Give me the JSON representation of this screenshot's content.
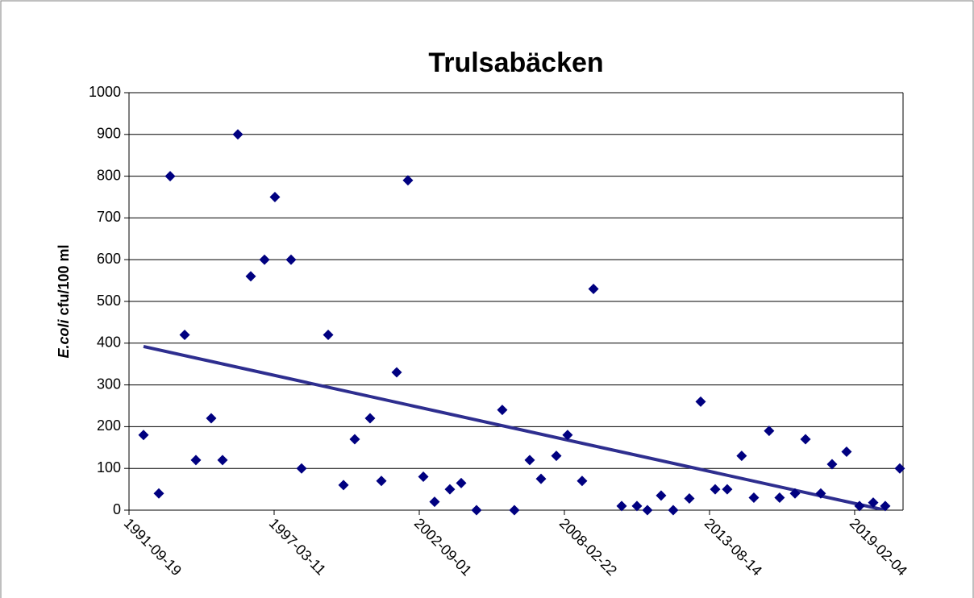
{
  "chart_data": {
    "type": "scatter",
    "title": "Trulsabäcken",
    "ylabel": {
      "italic": "E.coli",
      "rest": " cfu/100 ml"
    },
    "color": "#000080",
    "x": [
      "1992-04-06",
      "1992-11-03",
      "1993-04-08",
      "1993-10-25",
      "1994-03-29",
      "1994-10-26",
      "1995-03-31",
      "1995-10-28",
      "1996-04-23",
      "1996-10-29",
      "1997-03-22",
      "1997-10-30",
      "1998-03-24",
      "1999-03-26",
      "1999-10-23",
      "2000-03-26",
      "2000-10-23",
      "2001-03-28",
      "2001-10-25",
      "2002-03-29",
      "2002-10-27",
      "2003-03-31",
      "2003-10-28",
      "2004-04-01",
      "2004-10-29",
      "2005-10-19",
      "2006-04-04",
      "2006-11-01",
      "2007-04-06",
      "2007-11-03",
      "2008-04-06",
      "2008-10-23",
      "2009-03-29",
      "2010-04-21",
      "2010-11-18",
      "2011-04-11",
      "2011-10-17",
      "2012-04-01",
      "2012-11-09",
      "2013-04-14",
      "2013-10-31",
      "2014-04-15",
      "2014-10-31",
      "2015-04-17",
      "2015-11-13",
      "2016-04-06",
      "2016-11-04",
      "2017-03-29",
      "2017-10-25",
      "2018-03-30",
      "2018-10-16",
      "2019-04-12",
      "2019-10-18",
      "2020-04-01",
      "2020-10-18"
    ],
    "values": [
      180,
      40,
      800,
      420,
      120,
      220,
      120,
      900,
      560,
      600,
      750,
      600,
      100,
      420,
      60,
      170,
      220,
      70,
      330,
      790,
      80,
      20,
      50,
      65,
      0,
      240,
      0,
      120,
      75,
      130,
      180,
      70,
      530,
      10,
      10,
      0,
      35,
      0,
      28,
      260,
      50,
      50,
      130,
      30,
      190,
      30,
      40,
      170,
      40,
      110,
      140,
      10,
      18,
      10,
      100
    ],
    "trendline": {
      "x": [
        "1992-04-06",
        "2020-04-01"
      ],
      "values": [
        392,
        0
      ],
      "color": "#2e2e8f"
    },
    "xlim": [
      "1991-09-19",
      "2020-12-02"
    ],
    "xticks": [
      "1991-09-19",
      "1997-03-11",
      "2002-09-01",
      "2008-02-22",
      "2013-08-14",
      "2019-02-04"
    ],
    "ylim": [
      0,
      1000
    ],
    "yticks": [
      0,
      100,
      200,
      300,
      400,
      500,
      600,
      700,
      800,
      900,
      1000
    ],
    "grid": true
  }
}
